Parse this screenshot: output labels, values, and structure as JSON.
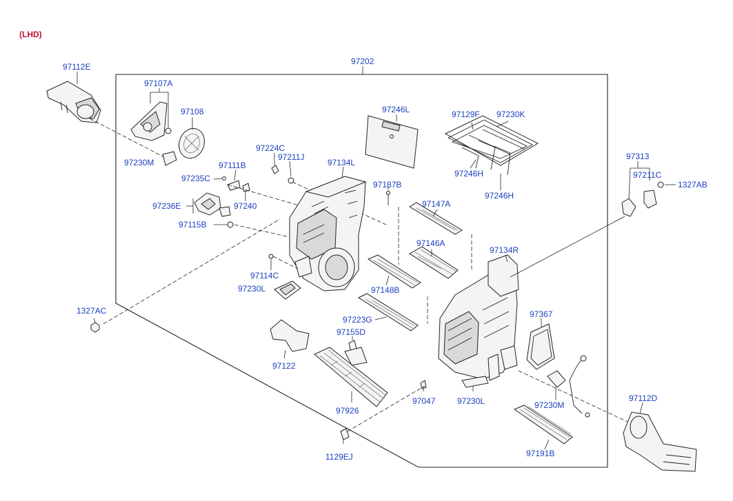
{
  "variant_label": "(LHD)",
  "colors": {
    "label": "#1a3fbf",
    "variant": "#c4122f",
    "line": "#222222"
  },
  "part_numbers": {
    "main_assembly": "97202",
    "duct_left": "97112E",
    "duct_right": "97112D",
    "motor_mount": "97107A",
    "actuator": "97108",
    "seal_left": "97230M",
    "seal_right": "97230M",
    "screw_a": "97224C",
    "clip_a": "97211J",
    "lever_a": "97111B",
    "clip_b": "97235C",
    "lever_b": "97240",
    "actuator_b": "97236E",
    "link": "97115B",
    "case_left": "97134L",
    "case_right": "97134R",
    "pad": "97246L",
    "seal_frame": "97129F",
    "seal_ring": "97230K",
    "seal_h_1": "97246H",
    "seal_h_2": "97246H",
    "bolt_a": "97187B",
    "door_a": "97147A",
    "door_b": "97146A",
    "door_c": "97148B",
    "grommet": "97114C",
    "seal_l_1": "97230L",
    "seal_l_2": "97230L",
    "door_d": "97223G",
    "clip_c": "97155D",
    "bracket": "97122",
    "heater_core": "97926",
    "clip_d": "97047",
    "screw_b": "1129EJ",
    "nut_left": "1327AC",
    "sensor": "97313",
    "clip_e": "97211C",
    "nut_right": "1327AB",
    "gasket": "97367",
    "door_e": "97191B"
  }
}
